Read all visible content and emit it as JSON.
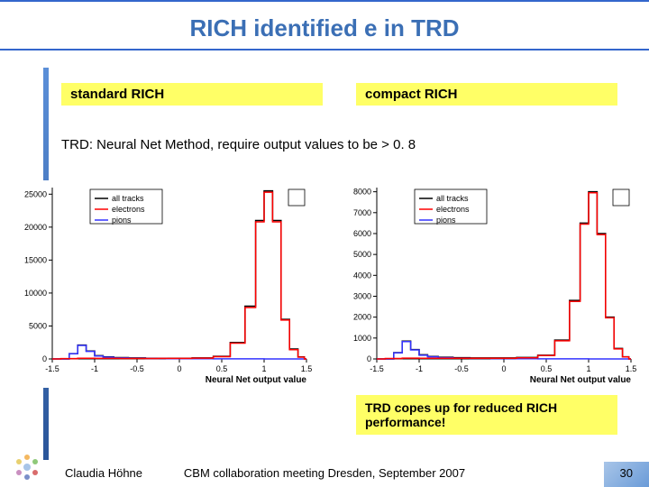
{
  "title": "RICH identified e in TRD",
  "labels": {
    "left": "standard RICH",
    "right": "compact RICH"
  },
  "subtitle": "TRD: Neural Net Method, require output values to be > 0. 8",
  "note": "TRD copes up for reduced RICH performance!",
  "footer": {
    "author": "Claudia Höhne",
    "meeting": "CBM collaboration meeting Dresden, September 2007",
    "page": "30"
  },
  "legend": {
    "items": [
      {
        "label": "all tracks",
        "color": "#000000"
      },
      {
        "label": "electrons",
        "color": "#ff0000"
      },
      {
        "label": "pions",
        "color": "#3333ff"
      }
    ]
  },
  "chart_left": {
    "ylim": [
      0,
      26000
    ],
    "yticks": [
      0,
      5000,
      10000,
      15000,
      20000,
      25000
    ],
    "xlim": [
      -1.5,
      1.5
    ],
    "xticks": [
      -1.5,
      -1,
      -0.5,
      0,
      0.5,
      1,
      1.5
    ],
    "xlabel": "Neural Net output value",
    "series": {
      "all_tracks": {
        "color": "#000000",
        "data": [
          [
            -1.5,
            0
          ],
          [
            -1.35,
            0
          ],
          [
            -1.25,
            800
          ],
          [
            -1.15,
            2100
          ],
          [
            -1.05,
            1200
          ],
          [
            -0.95,
            500
          ],
          [
            -0.85,
            300
          ],
          [
            -0.7,
            200
          ],
          [
            -0.5,
            150
          ],
          [
            -0.3,
            100
          ],
          [
            0,
            100
          ],
          [
            0.3,
            150
          ],
          [
            0.5,
            400
          ],
          [
            0.7,
            2500
          ],
          [
            0.85,
            8000
          ],
          [
            0.95,
            21000
          ],
          [
            1.05,
            25500
          ],
          [
            1.15,
            21000
          ],
          [
            1.25,
            6000
          ],
          [
            1.35,
            1500
          ],
          [
            1.45,
            300
          ],
          [
            1.5,
            0
          ]
        ]
      },
      "electrons": {
        "color": "#ff0000",
        "data": [
          [
            -1.5,
            0
          ],
          [
            -1.3,
            50
          ],
          [
            -1.1,
            100
          ],
          [
            -0.9,
            80
          ],
          [
            -0.5,
            60
          ],
          [
            0,
            80
          ],
          [
            0.3,
            120
          ],
          [
            0.5,
            350
          ],
          [
            0.7,
            2400
          ],
          [
            0.85,
            7800
          ],
          [
            0.95,
            20800
          ],
          [
            1.05,
            25300
          ],
          [
            1.15,
            20800
          ],
          [
            1.25,
            5900
          ],
          [
            1.35,
            1400
          ],
          [
            1.45,
            280
          ],
          [
            1.5,
            0
          ]
        ]
      },
      "pions": {
        "color": "#3333ff",
        "data": [
          [
            -1.5,
            0
          ],
          [
            -1.35,
            0
          ],
          [
            -1.25,
            780
          ],
          [
            -1.15,
            2050
          ],
          [
            -1.05,
            1150
          ],
          [
            -0.95,
            450
          ],
          [
            -0.85,
            250
          ],
          [
            -0.7,
            150
          ],
          [
            -0.5,
            100
          ],
          [
            -0.3,
            60
          ],
          [
            0,
            40
          ],
          [
            0.3,
            30
          ],
          [
            0.5,
            20
          ],
          [
            0.7,
            15
          ],
          [
            0.9,
            10
          ],
          [
            1.1,
            5
          ],
          [
            1.3,
            2
          ],
          [
            1.5,
            0
          ]
        ]
      }
    },
    "line_width": 1.5,
    "grid_color": "#cccccc",
    "axis_color": "#000000",
    "tick_fontsize": 9
  },
  "chart_right": {
    "ylim": [
      0,
      8200
    ],
    "yticks": [
      0,
      1000,
      2000,
      3000,
      4000,
      5000,
      6000,
      7000,
      8000
    ],
    "xlim": [
      -1.5,
      1.5
    ],
    "xticks": [
      -1.5,
      -1,
      -0.5,
      0,
      0.5,
      1,
      1.5
    ],
    "xlabel": "Neural Net output value",
    "series": {
      "all_tracks": {
        "color": "#000000",
        "data": [
          [
            -1.5,
            0
          ],
          [
            -1.35,
            0
          ],
          [
            -1.25,
            300
          ],
          [
            -1.15,
            850
          ],
          [
            -1.05,
            450
          ],
          [
            -0.95,
            200
          ],
          [
            -0.85,
            120
          ],
          [
            -0.7,
            80
          ],
          [
            -0.5,
            60
          ],
          [
            -0.3,
            50
          ],
          [
            0,
            50
          ],
          [
            0.3,
            70
          ],
          [
            0.5,
            180
          ],
          [
            0.7,
            900
          ],
          [
            0.85,
            2800
          ],
          [
            0.95,
            6500
          ],
          [
            1.05,
            8000
          ],
          [
            1.15,
            6000
          ],
          [
            1.25,
            2000
          ],
          [
            1.35,
            500
          ],
          [
            1.45,
            100
          ],
          [
            1.5,
            0
          ]
        ]
      },
      "electrons": {
        "color": "#ff0000",
        "data": [
          [
            -1.5,
            0
          ],
          [
            -1.3,
            20
          ],
          [
            -1.1,
            40
          ],
          [
            -0.9,
            35
          ],
          [
            -0.5,
            30
          ],
          [
            0,
            35
          ],
          [
            0.3,
            55
          ],
          [
            0.5,
            160
          ],
          [
            0.7,
            870
          ],
          [
            0.85,
            2750
          ],
          [
            0.95,
            6450
          ],
          [
            1.05,
            7950
          ],
          [
            1.15,
            5950
          ],
          [
            1.25,
            1970
          ],
          [
            1.35,
            480
          ],
          [
            1.45,
            95
          ],
          [
            1.5,
            0
          ]
        ]
      },
      "pions": {
        "color": "#3333ff",
        "data": [
          [
            -1.5,
            0
          ],
          [
            -1.35,
            0
          ],
          [
            -1.25,
            290
          ],
          [
            -1.15,
            830
          ],
          [
            -1.05,
            430
          ],
          [
            -0.95,
            180
          ],
          [
            -0.85,
            100
          ],
          [
            -0.7,
            60
          ],
          [
            -0.5,
            40
          ],
          [
            -0.3,
            25
          ],
          [
            0,
            15
          ],
          [
            0.3,
            10
          ],
          [
            0.5,
            8
          ],
          [
            0.7,
            5
          ],
          [
            0.9,
            3
          ],
          [
            1.1,
            2
          ],
          [
            1.3,
            1
          ],
          [
            1.5,
            0
          ]
        ]
      }
    },
    "line_width": 1.5,
    "grid_color": "#cccccc",
    "axis_color": "#000000",
    "tick_fontsize": 9
  },
  "colors": {
    "title": "#3b6fb5",
    "accent": "#3366cc",
    "highlight_bg": "#ffff66",
    "stripe_top": "#5b8fd8",
    "stripe_bottom": "#2a5599"
  }
}
